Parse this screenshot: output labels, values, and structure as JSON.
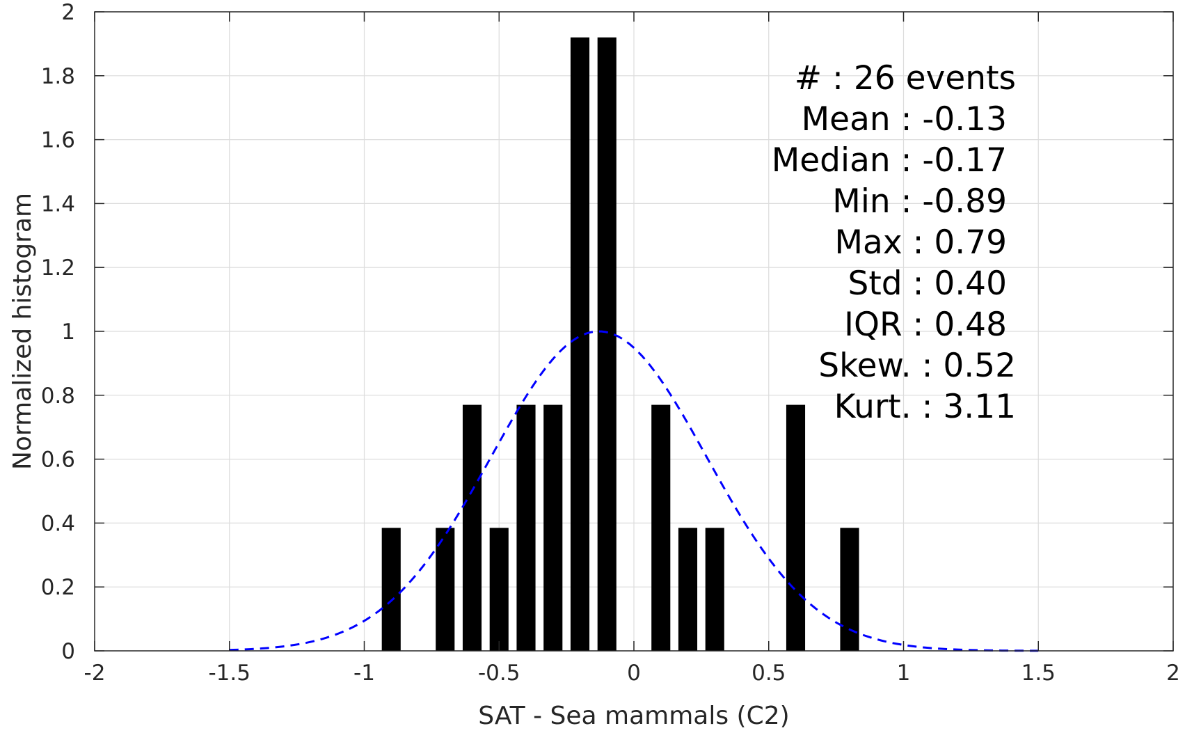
{
  "chart_data": {
    "type": "bar",
    "title": "",
    "xlabel": "SAT - Sea mammals (C2)",
    "ylabel": "Normalized histogram",
    "xlim": [
      -2,
      2
    ],
    "ylim": [
      0,
      2
    ],
    "grid": true,
    "x_ticks": [
      -2,
      -1.5,
      -1,
      -0.5,
      0,
      0.5,
      1,
      1.5,
      2
    ],
    "x_tick_labels": [
      "-2",
      "-1.5",
      "-1",
      "-0.5",
      "0",
      "0.5",
      "1",
      "1.5",
      "2"
    ],
    "y_ticks": [
      0,
      0.2,
      0.4,
      0.6,
      0.8,
      1,
      1.2,
      1.4,
      1.6,
      1.8,
      2
    ],
    "y_tick_labels": [
      "0",
      "0.2",
      "0.4",
      "0.6",
      "0.8",
      "1",
      "1.2",
      "1.4",
      "1.6",
      "1.8",
      "2"
    ],
    "bar_width": 0.07,
    "bars": [
      {
        "x": -0.9,
        "value": 0.385
      },
      {
        "x": -0.7,
        "value": 0.385
      },
      {
        "x": -0.6,
        "value": 0.77
      },
      {
        "x": -0.5,
        "value": 0.385
      },
      {
        "x": -0.4,
        "value": 0.77
      },
      {
        "x": -0.3,
        "value": 0.77
      },
      {
        "x": -0.2,
        "value": 1.92
      },
      {
        "x": -0.1,
        "value": 1.92
      },
      {
        "x": 0.1,
        "value": 0.77
      },
      {
        "x": 0.2,
        "value": 0.385
      },
      {
        "x": 0.3,
        "value": 0.385
      },
      {
        "x": 0.6,
        "value": 0.77
      },
      {
        "x": 0.8,
        "value": 0.385
      }
    ],
    "bar_color": "#000000",
    "fit_curve": {
      "type": "normal",
      "mean": -0.13,
      "std": 0.4,
      "x_range": [
        -1.5,
        1.5
      ],
      "color": "#0000ff",
      "style": "dashed"
    },
    "annotations": [
      "#  : 26 events",
      "Mean : -0.13",
      "Median : -0.17",
      "Min : -0.89",
      "Max : 0.79",
      "Std : 0.40",
      "IQR : 0.48",
      "Skew. : 0.52",
      "Kurt. : 3.11"
    ]
  }
}
